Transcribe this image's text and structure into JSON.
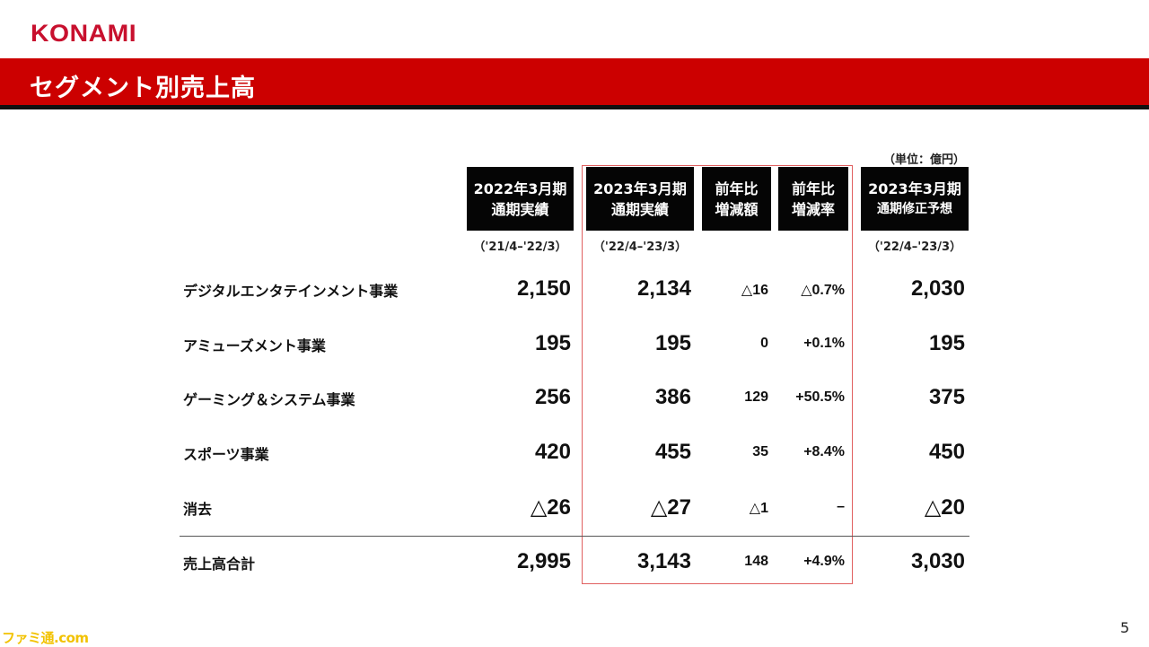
{
  "brand": {
    "logo": "KONAMI",
    "logo_color": "#c8102e"
  },
  "header": {
    "title": "セグメント別売上高",
    "bar_color": "#cc0000"
  },
  "unit_note": "（単位：億円）",
  "columns": [
    {
      "line1": "2022年3月期",
      "line2": "通期実績",
      "period": "（'21/4–'22/3）"
    },
    {
      "line1": "2023年3月期",
      "line2": "通期実績",
      "period": "（'22/4–'23/3）"
    },
    {
      "line1": "前年比",
      "line2": "増減額",
      "period": ""
    },
    {
      "line1": "前年比",
      "line2": "増減率",
      "period": ""
    },
    {
      "line1": "2023年3月期",
      "line2": "通期修正予想",
      "period": "（'22/4–'23/3）"
    }
  ],
  "rows": [
    {
      "label": "デジタルエンタテインメント事業",
      "fy2022": "2,150",
      "fy2023": "2,134",
      "diff": "△16",
      "rate": "△0.7%",
      "forecast": "2,030"
    },
    {
      "label": "アミューズメント事業",
      "fy2022": "195",
      "fy2023": "195",
      "diff": "0",
      "rate": "+0.1%",
      "forecast": "195"
    },
    {
      "label": "ゲーミング＆システム事業",
      "fy2022": "256",
      "fy2023": "386",
      "diff": "129",
      "rate": "+50.5%",
      "forecast": "375"
    },
    {
      "label": "スポーツ事業",
      "fy2022": "420",
      "fy2023": "455",
      "diff": "35",
      "rate": "+8.4%",
      "forecast": "450"
    },
    {
      "label": "消去",
      "fy2022": "△26",
      "fy2023": "△27",
      "diff": "△1",
      "rate": "–",
      "forecast": "△20"
    },
    {
      "label": "売上高合計",
      "fy2022": "2,995",
      "fy2023": "3,143",
      "diff": "148",
      "rate": "+4.9%",
      "forecast": "3,030"
    }
  ],
  "highlight_color": "#e06060",
  "page_number": "5",
  "watermark": "ファミ通.com"
}
